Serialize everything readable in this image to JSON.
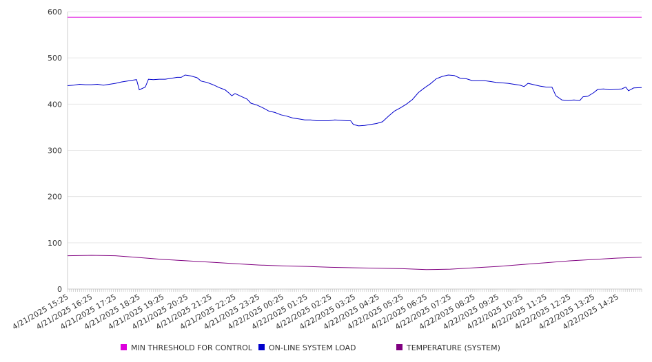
{
  "chart_data": {
    "type": "line",
    "title": "",
    "xlabel": "",
    "ylabel": "",
    "ylim": [
      0,
      600
    ],
    "y_ticks": [
      "0",
      "100",
      "200",
      "300",
      "400",
      "500",
      "600"
    ],
    "x_ticks": [
      "4/21/2025 15:25",
      "4/21/2025 16:25",
      "4/21/2025 17:25",
      "4/21/2025 18:25",
      "4/21/2025 19:25",
      "4/21/2025 20:25",
      "4/21/2025 21:25",
      "4/21/2025 22:25",
      "4/21/2025 23:25",
      "4/22/2025 00:25",
      "4/22/2025 01:25",
      "4/22/2025 02:25",
      "4/22/2025 03:25",
      "4/22/2025 04:25",
      "4/22/2025 05:25",
      "4/22/2025 06:25",
      "4/22/2025 07:25",
      "4/22/2025 08:25",
      "4/22/2025 09:25",
      "4/22/2025 10:25",
      "4/22/2025 11:25",
      "4/22/2025 12:25",
      "4/22/2025 13:25",
      "4/22/2025 14:25"
    ],
    "x_range": [
      "4/21/2025 15:25",
      "4/22/2025 15:25"
    ],
    "grid": true,
    "legend_position": "bottom",
    "series": [
      {
        "name": "MIN THRESHOLD FOR CONTROL",
        "color": "#dd00dd",
        "points": [
          [
            "4/21/2025 15:25",
            588
          ],
          [
            "4/22/2025 15:25",
            588
          ]
        ]
      },
      {
        "name": "ON-LINE SYSTEM LOAD",
        "color": "#0000cc",
        "points": [
          [
            "4/21/2025 15:25",
            440
          ],
          [
            "4/21/2025 15:40",
            441
          ],
          [
            "4/21/2025 15:55",
            443
          ],
          [
            "4/21/2025 16:10",
            442
          ],
          [
            "4/21/2025 16:25",
            442
          ],
          [
            "4/21/2025 16:40",
            443
          ],
          [
            "4/21/2025 16:55",
            441
          ],
          [
            "4/21/2025 17:10",
            443
          ],
          [
            "4/21/2025 17:25",
            445
          ],
          [
            "4/21/2025 17:40",
            448
          ],
          [
            "4/21/2025 17:55",
            450
          ],
          [
            "4/21/2025 18:10",
            452
          ],
          [
            "4/21/2025 18:18",
            453
          ],
          [
            "4/21/2025 18:25",
            431
          ],
          [
            "4/21/2025 18:40",
            437
          ],
          [
            "4/21/2025 18:48",
            454
          ],
          [
            "4/21/2025 19:00",
            453
          ],
          [
            "4/21/2025 19:15",
            454
          ],
          [
            "4/21/2025 19:30",
            454
          ],
          [
            "4/21/2025 19:45",
            456
          ],
          [
            "4/21/2025 20:00",
            458
          ],
          [
            "4/21/2025 20:10",
            458
          ],
          [
            "4/21/2025 20:20",
            463
          ],
          [
            "4/21/2025 20:35",
            461
          ],
          [
            "4/21/2025 20:50",
            457
          ],
          [
            "4/21/2025 21:00",
            450
          ],
          [
            "4/21/2025 21:15",
            447
          ],
          [
            "4/21/2025 21:30",
            442
          ],
          [
            "4/21/2025 21:45",
            436
          ],
          [
            "4/21/2025 22:00",
            431
          ],
          [
            "4/21/2025 22:10",
            424
          ],
          [
            "4/21/2025 22:17",
            418
          ],
          [
            "4/21/2025 22:25",
            423
          ],
          [
            "4/21/2025 22:40",
            417
          ],
          [
            "4/21/2025 22:55",
            411
          ],
          [
            "4/21/2025 23:05",
            402
          ],
          [
            "4/21/2025 23:20",
            398
          ],
          [
            "4/21/2025 23:35",
            392
          ],
          [
            "4/21/2025 23:50",
            385
          ],
          [
            "4/22/2025 00:05",
            382
          ],
          [
            "4/22/2025 00:20",
            377
          ],
          [
            "4/22/2025 00:35",
            374
          ],
          [
            "4/22/2025 00:50",
            370
          ],
          [
            "4/22/2025 01:05",
            368
          ],
          [
            "4/22/2025 01:20",
            366
          ],
          [
            "4/22/2025 01:35",
            366
          ],
          [
            "4/22/2025 01:50",
            364
          ],
          [
            "4/22/2025 02:05",
            364
          ],
          [
            "4/22/2025 02:20",
            364
          ],
          [
            "4/22/2025 02:35",
            366
          ],
          [
            "4/22/2025 02:50",
            365
          ],
          [
            "4/22/2025 03:05",
            364
          ],
          [
            "4/22/2025 03:15",
            364
          ],
          [
            "4/22/2025 03:22",
            356
          ],
          [
            "4/22/2025 03:35",
            353
          ],
          [
            "4/22/2025 03:50",
            354
          ],
          [
            "4/22/2025 04:05",
            356
          ],
          [
            "4/22/2025 04:20",
            358
          ],
          [
            "4/22/2025 04:35",
            362
          ],
          [
            "4/22/2025 04:50",
            374
          ],
          [
            "4/22/2025 05:05",
            385
          ],
          [
            "4/22/2025 05:20",
            392
          ],
          [
            "4/22/2025 05:35",
            400
          ],
          [
            "4/22/2025 05:50",
            410
          ],
          [
            "4/22/2025 06:05",
            425
          ],
          [
            "4/22/2025 06:20",
            435
          ],
          [
            "4/22/2025 06:35",
            444
          ],
          [
            "4/22/2025 06:50",
            455
          ],
          [
            "4/22/2025 07:05",
            460
          ],
          [
            "4/22/2025 07:20",
            463
          ],
          [
            "4/22/2025 07:35",
            462
          ],
          [
            "4/22/2025 07:50",
            456
          ],
          [
            "4/22/2025 08:05",
            455
          ],
          [
            "4/22/2025 08:20",
            451
          ],
          [
            "4/22/2025 08:35",
            451
          ],
          [
            "4/22/2025 08:50",
            451
          ],
          [
            "4/22/2025 09:05",
            449
          ],
          [
            "4/22/2025 09:20",
            447
          ],
          [
            "4/22/2025 09:35",
            446
          ],
          [
            "4/22/2025 09:50",
            445
          ],
          [
            "4/22/2025 10:05",
            443
          ],
          [
            "4/22/2025 10:20",
            441
          ],
          [
            "4/22/2025 10:30",
            438
          ],
          [
            "4/22/2025 10:40",
            445
          ],
          [
            "4/22/2025 10:55",
            442
          ],
          [
            "4/22/2025 11:10",
            439
          ],
          [
            "4/22/2025 11:25",
            437
          ],
          [
            "4/22/2025 11:40",
            437
          ],
          [
            "4/22/2025 11:50",
            418
          ],
          [
            "4/22/2025 12:05",
            409
          ],
          [
            "4/22/2025 12:20",
            408
          ],
          [
            "4/22/2025 12:35",
            409
          ],
          [
            "4/22/2025 12:50",
            408
          ],
          [
            "4/22/2025 12:58",
            416
          ],
          [
            "4/22/2025 13:10",
            417
          ],
          [
            "4/22/2025 13:25",
            425
          ],
          [
            "4/22/2025 13:35",
            432
          ],
          [
            "4/22/2025 13:50",
            433
          ],
          [
            "4/22/2025 14:05",
            431
          ],
          [
            "4/22/2025 14:20",
            432
          ],
          [
            "4/22/2025 14:35",
            433
          ],
          [
            "4/22/2025 14:45",
            437
          ],
          [
            "4/22/2025 14:52",
            429
          ],
          [
            "4/22/2025 15:05",
            435
          ],
          [
            "4/22/2025 15:25",
            436
          ]
        ]
      },
      {
        "name": "TEMPERATURE (SYSTEM)",
        "color": "#800080",
        "points": [
          [
            "4/21/2025 15:25",
            72
          ],
          [
            "4/21/2025 16:25",
            73
          ],
          [
            "4/21/2025 17:25",
            72
          ],
          [
            "4/21/2025 18:25",
            68
          ],
          [
            "4/21/2025 19:25",
            64
          ],
          [
            "4/21/2025 20:25",
            61
          ],
          [
            "4/21/2025 21:25",
            58
          ],
          [
            "4/21/2025 22:25",
            55
          ],
          [
            "4/21/2025 23:25",
            52
          ],
          [
            "4/22/2025 00:25",
            50
          ],
          [
            "4/22/2025 01:25",
            49
          ],
          [
            "4/22/2025 02:25",
            47
          ],
          [
            "4/22/2025 03:25",
            46
          ],
          [
            "4/22/2025 04:25",
            45
          ],
          [
            "4/22/2025 05:25",
            44
          ],
          [
            "4/22/2025 06:25",
            42
          ],
          [
            "4/22/2025 07:25",
            43
          ],
          [
            "4/22/2025 08:25",
            46
          ],
          [
            "4/22/2025 09:25",
            49
          ],
          [
            "4/22/2025 10:25",
            53
          ],
          [
            "4/22/2025 11:25",
            57
          ],
          [
            "4/22/2025 12:25",
            61
          ],
          [
            "4/22/2025 13:25",
            64
          ],
          [
            "4/22/2025 14:25",
            67
          ],
          [
            "4/22/2025 15:25",
            69
          ]
        ]
      }
    ]
  }
}
